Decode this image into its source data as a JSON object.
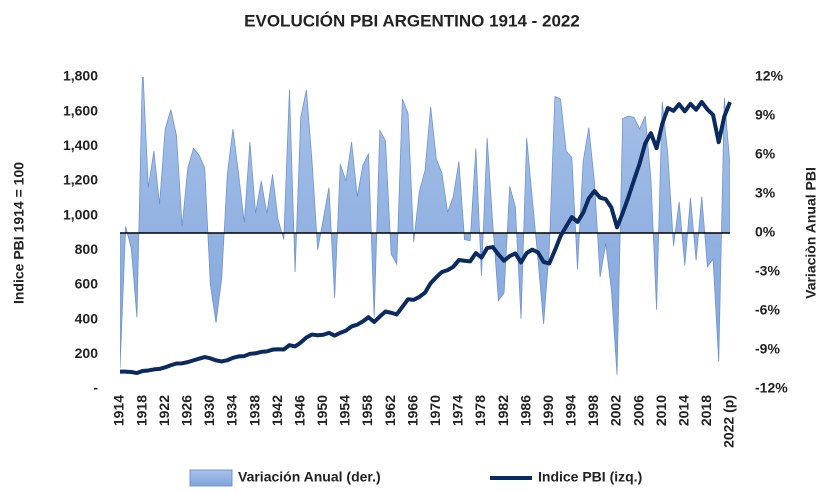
{
  "chart_data": {
    "type": "combo",
    "title": "EVOLUCIÓN PBI ARGENTINO 1914 - 2022",
    "y_label": "Indice PBI  1914 = 100",
    "y2_label": "Variaciòn Anual PBI",
    "x": [
      1914,
      1915,
      1916,
      1917,
      1918,
      1919,
      1920,
      1921,
      1922,
      1923,
      1924,
      1925,
      1926,
      1927,
      1928,
      1929,
      1930,
      1931,
      1932,
      1933,
      1934,
      1935,
      1936,
      1937,
      1938,
      1939,
      1940,
      1941,
      1942,
      1943,
      1944,
      1945,
      1946,
      1947,
      1948,
      1949,
      1950,
      1951,
      1952,
      1953,
      1954,
      1955,
      1956,
      1957,
      1958,
      1959,
      1960,
      1961,
      1962,
      1963,
      1964,
      1965,
      1966,
      1967,
      1968,
      1969,
      1970,
      1971,
      1972,
      1973,
      1974,
      1975,
      1976,
      1977,
      1978,
      1979,
      1980,
      1981,
      1982,
      1983,
      1984,
      1985,
      1986,
      1987,
      1988,
      1989,
      1990,
      1991,
      1992,
      1993,
      1994,
      1995,
      1996,
      1997,
      1998,
      1999,
      2000,
      2001,
      2002,
      2003,
      2004,
      2005,
      2006,
      2007,
      2008,
      2009,
      2010,
      2011,
      2012,
      2013,
      2014,
      2015,
      2016,
      2017,
      2018,
      2019,
      2020,
      2021,
      2022
    ],
    "xlim": [
      1914,
      2022
    ],
    "xticks": [
      1914,
      1918,
      1922,
      1926,
      1930,
      1934,
      1938,
      1942,
      1946,
      1950,
      1954,
      1958,
      1962,
      1966,
      1970,
      1974,
      1978,
      1982,
      1986,
      1990,
      1994,
      1998,
      2002,
      2006,
      2010,
      2014,
      2018,
      {
        "value": 2022,
        "label": "2022 (p)"
      }
    ],
    "ylim": [
      0,
      1800
    ],
    "yticks": [
      {
        "value": 0,
        "label": "-"
      },
      200,
      400,
      600,
      800,
      {
        "value": 1000,
        "label": "1,000"
      },
      {
        "value": 1200,
        "label": "1,200"
      },
      {
        "value": 1400,
        "label": "1,400"
      },
      {
        "value": 1600,
        "label": "1,600"
      },
      {
        "value": 1800,
        "label": "1,800"
      }
    ],
    "y2lim": [
      -12,
      12
    ],
    "y2ticks": [
      {
        "value": -12,
        "label": "-12%"
      },
      {
        "value": -9,
        "label": "-9%"
      },
      {
        "value": -6,
        "label": "-6%"
      },
      {
        "value": -3,
        "label": "-3%"
      },
      {
        "value": 0,
        "label": "0%"
      },
      {
        "value": 3,
        "label": "3%"
      },
      {
        "value": 6,
        "label": "6%"
      },
      {
        "value": 9,
        "label": "9%"
      },
      {
        "value": 12,
        "label": "12%"
      }
    ],
    "legend": "bottom",
    "series": [
      {
        "name": "Variación Anual (der.)",
        "type": "area",
        "axis": "y2",
        "color": "#8eb0e3",
        "values": [
          -10.4,
          0.5,
          -1.2,
          -6.5,
          13.0,
          3.5,
          6.3,
          2.2,
          8.0,
          9.5,
          7.5,
          0.5,
          5.0,
          6.5,
          6.0,
          5.0,
          -4.0,
          -6.9,
          -3.5,
          4.5,
          8.0,
          4.5,
          0.8,
          7.0,
          1.5,
          4.0,
          1.5,
          4.5,
          1.0,
          -0.5,
          11.0,
          -3.0,
          8.9,
          11.0,
          5.5,
          -1.3,
          1.1,
          3.5,
          -5.0,
          5.3,
          4.0,
          7.0,
          2.8,
          5.2,
          6.1,
          -6.5,
          7.9,
          7.1,
          -1.6,
          -2.4,
          10.3,
          9.2,
          -0.7,
          3.2,
          4.8,
          9.7,
          5.7,
          4.6,
          1.6,
          2.8,
          5.5,
          -0.5,
          -0.6,
          6.5,
          -3.3,
          7.3,
          0.7,
          -5.2,
          -4.6,
          3.6,
          2.0,
          -6.6,
          7.3,
          2.6,
          -2.0,
          -7.0,
          -1.3,
          10.5,
          10.3,
          6.3,
          5.8,
          -2.8,
          5.5,
          8.1,
          3.9,
          -3.4,
          -0.8,
          -4.4,
          -10.9,
          8.8,
          9.0,
          8.9,
          8.0,
          9.0,
          4.1,
          -5.9,
          10.1,
          6.0,
          -1.0,
          2.4,
          -2.5,
          2.7,
          -2.1,
          2.8,
          -2.6,
          -2.0,
          -9.9,
          10.4,
          5.2
        ]
      },
      {
        "name": "Indice PBI (izq.)",
        "type": "line",
        "color": "#0b2a5f",
        "values": [
          100,
          100,
          98,
          92,
          104,
          107,
          113,
          116,
          125,
          137,
          147,
          148,
          155,
          165,
          175,
          184,
          177,
          165,
          159,
          166,
          180,
          188,
          190,
          203,
          206,
          214,
          217,
          227,
          229,
          228,
          253,
          246,
          268,
          297,
          314,
          310,
          313,
          324,
          308,
          324,
          337,
          361,
          371,
          390,
          414,
          387,
          418,
          447,
          440,
          430,
          474,
          518,
          514,
          531,
          556,
          610,
          645,
          675,
          686,
          705,
          744,
          740,
          736,
          784,
          758,
          813,
          819,
          776,
          740,
          767,
          782,
          730,
          784,
          804,
          788,
          733,
          724,
          800,
          882,
          938,
          992,
          964,
          1017,
          1100,
          1142,
          1104,
          1095,
          1047,
          933,
          1015,
          1106,
          1205,
          1301,
          1418,
          1476,
          1389,
          1529,
          1621,
          1605,
          1643,
          1602,
          1645,
          1611,
          1656,
          1613,
          1581,
          1424,
          1573,
          1655
        ]
      }
    ]
  }
}
